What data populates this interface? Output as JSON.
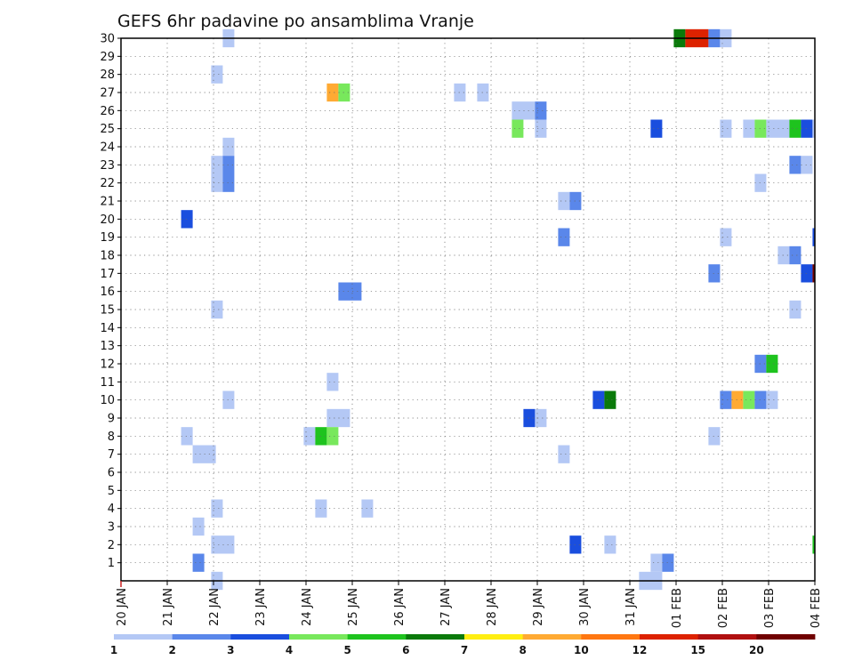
{
  "chart_data": {
    "type": "heatmap",
    "title": "GEFS 6hr padavine po ansamblima Vranje",
    "xlabel": "",
    "ylabel": "",
    "x_ticks": [
      "20 JAN",
      "21 JAN",
      "22 JAN",
      "23 JAN",
      "24 JAN",
      "25 JAN",
      "26 JAN",
      "27 JAN",
      "28 JAN",
      "29 JAN",
      "30 JAN",
      "31 JAN",
      "01 FEB",
      "02 FEB",
      "03 FEB",
      "04 FEB"
    ],
    "y_ticks": [
      "1",
      "2",
      "3",
      "4",
      "5",
      "6",
      "7",
      "8",
      "9",
      "10",
      "11",
      "12",
      "13",
      "14",
      "15",
      "16",
      "17",
      "18",
      "19",
      "20",
      "21",
      "22",
      "23",
      "24",
      "25",
      "26",
      "27",
      "28",
      "29",
      "30"
    ],
    "x_range": [
      "20 JAN 00Z",
      "04 FEB 00Z"
    ],
    "y_range": [
      0,
      30
    ],
    "grid": true,
    "colorbar": {
      "position": "bottom",
      "labels": [
        "1",
        "2",
        "3",
        "4",
        "5",
        "6",
        "7",
        "8",
        "10",
        "12",
        "15",
        "20"
      ],
      "colors": [
        "#b4c8f5",
        "#5a87ea",
        "#1a4ede",
        "#78e85c",
        "#1ec31e",
        "#0a7a0a",
        "#ffee11",
        "#ffaa33",
        "#ff7711",
        "#dd2200",
        "#b01010",
        "#700000"
      ]
    },
    "cells": [
      {
        "m": 30,
        "x": [
          2.2,
          2.45
        ],
        "c": 0
      },
      {
        "m": 30,
        "x": [
          11.95,
          12.2
        ],
        "c": 5
      },
      {
        "m": 30,
        "x": [
          12.2,
          12.7
        ],
        "c": 9
      },
      {
        "m": 30,
        "x": [
          12.7,
          12.95
        ],
        "c": 1
      },
      {
        "m": 30,
        "x": [
          12.95,
          13.2
        ],
        "c": 0
      },
      {
        "m": 28,
        "x": [
          1.95,
          2.2
        ],
        "c": 0
      },
      {
        "m": 27,
        "x": [
          4.45,
          4.7
        ],
        "c": 7
      },
      {
        "m": 27,
        "x": [
          4.7,
          4.95
        ],
        "c": 3
      },
      {
        "m": 27,
        "x": [
          7.2,
          7.45
        ],
        "c": 0
      },
      {
        "m": 27,
        "x": [
          7.7,
          7.95
        ],
        "c": 0
      },
      {
        "m": 26,
        "x": [
          8.45,
          8.95
        ],
        "c": 0
      },
      {
        "m": 26,
        "x": [
          8.95,
          9.2
        ],
        "c": 1
      },
      {
        "m": 25,
        "x": [
          8.45,
          8.7
        ],
        "c": 3
      },
      {
        "m": 25,
        "x": [
          8.95,
          9.2
        ],
        "c": 0
      },
      {
        "m": 25,
        "x": [
          11.45,
          11.7
        ],
        "c": 2
      },
      {
        "m": 25,
        "x": [
          12.95,
          13.2
        ],
        "c": 0
      },
      {
        "m": 25,
        "x": [
          13.45,
          13.7
        ],
        "c": 0
      },
      {
        "m": 25,
        "x": [
          13.7,
          13.95
        ],
        "c": 3
      },
      {
        "m": 25,
        "x": [
          13.95,
          14.45
        ],
        "c": 0
      },
      {
        "m": 25,
        "x": [
          14.45,
          14.7
        ],
        "c": 4
      },
      {
        "m": 25,
        "x": [
          14.7,
          14.95
        ],
        "c": 2
      },
      {
        "m": 25,
        "x": [
          14.95,
          15.0
        ],
        "c": 0
      },
      {
        "m": 24,
        "x": [
          2.2,
          2.45
        ],
        "c": 0
      },
      {
        "m": 23,
        "x": [
          1.95,
          2.2
        ],
        "c": 0
      },
      {
        "m": 23,
        "x": [
          2.2,
          2.45
        ],
        "c": 1
      },
      {
        "m": 23,
        "x": [
          14.45,
          14.7
        ],
        "c": 1
      },
      {
        "m": 23,
        "x": [
          14.7,
          14.95
        ],
        "c": 0
      },
      {
        "m": 22,
        "x": [
          1.95,
          2.2
        ],
        "c": 0
      },
      {
        "m": 22,
        "x": [
          2.2,
          2.45
        ],
        "c": 1
      },
      {
        "m": 22,
        "x": [
          13.7,
          13.95
        ],
        "c": 0
      },
      {
        "m": 21,
        "x": [
          9.45,
          9.7
        ],
        "c": 0
      },
      {
        "m": 21,
        "x": [
          9.7,
          9.95
        ],
        "c": 1
      },
      {
        "m": 20,
        "x": [
          1.3,
          1.55
        ],
        "c": 2
      },
      {
        "m": 19,
        "x": [
          9.45,
          9.7
        ],
        "c": 1
      },
      {
        "m": 19,
        "x": [
          12.95,
          13.2
        ],
        "c": 0
      },
      {
        "m": 19,
        "x": [
          14.95,
          15.0
        ],
        "c": 2
      },
      {
        "m": 18,
        "x": [
          14.2,
          14.45
        ],
        "c": 0
      },
      {
        "m": 18,
        "x": [
          14.45,
          14.7
        ],
        "c": 1
      },
      {
        "m": 17,
        "x": [
          12.7,
          12.95
        ],
        "c": 1
      },
      {
        "m": 17,
        "x": [
          14.7,
          14.95
        ],
        "c": 2
      },
      {
        "m": 17,
        "x": [
          14.95,
          15.0
        ],
        "c": 11
      },
      {
        "m": 16,
        "x": [
          4.7,
          5.2
        ],
        "c": 1
      },
      {
        "m": 15,
        "x": [
          1.95,
          2.2
        ],
        "c": 0
      },
      {
        "m": 15,
        "x": [
          14.45,
          14.7
        ],
        "c": 0
      },
      {
        "m": 12,
        "x": [
          13.7,
          13.95
        ],
        "c": 1
      },
      {
        "m": 12,
        "x": [
          13.95,
          14.2
        ],
        "c": 4
      },
      {
        "m": 11,
        "x": [
          4.45,
          4.7
        ],
        "c": 0
      },
      {
        "m": 10,
        "x": [
          2.2,
          2.45
        ],
        "c": 0
      },
      {
        "m": 10,
        "x": [
          10.2,
          10.45
        ],
        "c": 2
      },
      {
        "m": 10,
        "x": [
          10.45,
          10.7
        ],
        "c": 5
      },
      {
        "m": 10,
        "x": [
          12.95,
          13.2
        ],
        "c": 1
      },
      {
        "m": 10,
        "x": [
          13.2,
          13.45
        ],
        "c": 7
      },
      {
        "m": 10,
        "x": [
          13.45,
          13.7
        ],
        "c": 3
      },
      {
        "m": 10,
        "x": [
          13.7,
          13.95
        ],
        "c": 1
      },
      {
        "m": 10,
        "x": [
          13.95,
          14.2
        ],
        "c": 0
      },
      {
        "m": 9,
        "x": [
          4.45,
          4.95
        ],
        "c": 0
      },
      {
        "m": 9,
        "x": [
          8.7,
          8.95
        ],
        "c": 2
      },
      {
        "m": 9,
        "x": [
          8.95,
          9.2
        ],
        "c": 0
      },
      {
        "m": 8,
        "x": [
          1.3,
          1.55
        ],
        "c": 0
      },
      {
        "m": 8,
        "x": [
          3.95,
          4.2
        ],
        "c": 0
      },
      {
        "m": 8,
        "x": [
          4.2,
          4.45
        ],
        "c": 4
      },
      {
        "m": 8,
        "x": [
          4.45,
          4.7
        ],
        "c": 3
      },
      {
        "m": 8,
        "x": [
          12.7,
          12.95
        ],
        "c": 0
      },
      {
        "m": 7,
        "x": [
          1.55,
          2.05
        ],
        "c": 0
      },
      {
        "m": 7,
        "x": [
          9.45,
          9.7
        ],
        "c": 0
      },
      {
        "m": 4,
        "x": [
          1.95,
          2.2
        ],
        "c": 0
      },
      {
        "m": 4,
        "x": [
          4.2,
          4.45
        ],
        "c": 0
      },
      {
        "m": 4,
        "x": [
          5.2,
          5.45
        ],
        "c": 0
      },
      {
        "m": 3,
        "x": [
          1.55,
          1.8
        ],
        "c": 0
      },
      {
        "m": 2,
        "x": [
          1.95,
          2.45
        ],
        "c": 0
      },
      {
        "m": 2,
        "x": [
          9.7,
          9.95
        ],
        "c": 2
      },
      {
        "m": 2,
        "x": [
          10.45,
          10.7
        ],
        "c": 0
      },
      {
        "m": 2,
        "x": [
          14.95,
          15.0
        ],
        "c": 4
      },
      {
        "m": 1,
        "x": [
          1.55,
          1.8
        ],
        "c": 1
      },
      {
        "m": 1,
        "x": [
          11.45,
          11.7
        ],
        "c": 0
      },
      {
        "m": 1,
        "x": [
          11.7,
          11.95
        ],
        "c": 1
      },
      {
        "m": 0,
        "x": [
          1.95,
          2.2
        ],
        "c": 0
      },
      {
        "m": 0,
        "x": [
          11.2,
          11.7
        ],
        "c": 0
      }
    ]
  }
}
